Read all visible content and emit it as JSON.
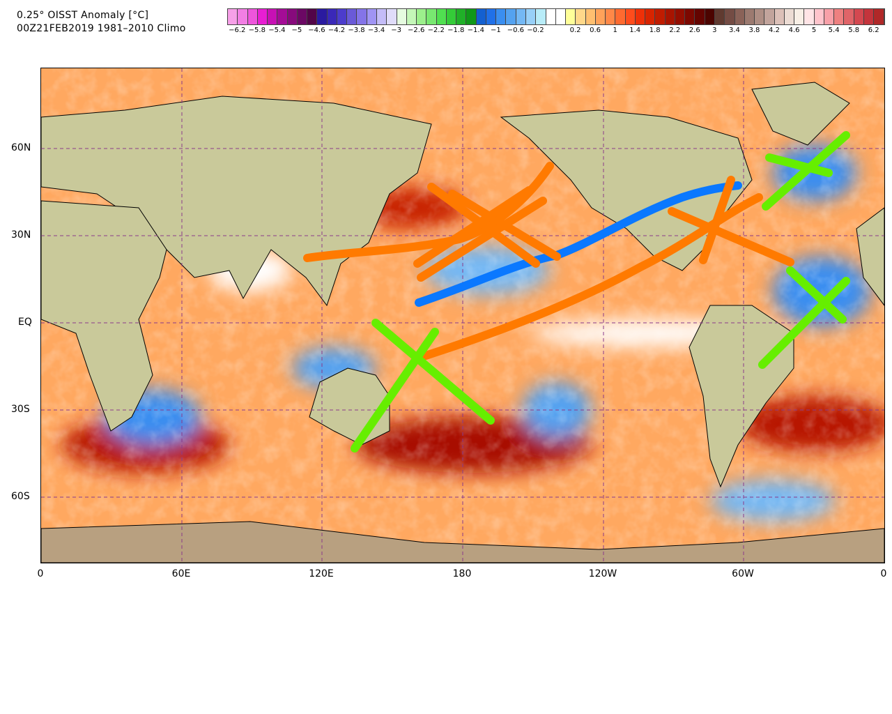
{
  "title_line1": "0.25° OISST Anomaly [°C]",
  "title_line2": "00Z21FEB2019 1981–2010 Climo",
  "colorbar": {
    "labels": [
      "−6.2",
      "−5.8",
      "−5.4",
      "−5",
      "−4.6",
      "−4.2",
      "−3.8",
      "−3.4",
      "−3",
      "−2.6",
      "−2.2",
      "−1.8",
      "−1.4",
      "−1",
      "−0.6",
      "−0.2",
      "0.2",
      "0.6",
      "1",
      "1.4",
      "1.8",
      "2.2",
      "2.6",
      "3",
      "3.4",
      "3.8",
      "4.2",
      "4.6",
      "5",
      "5.4",
      "5.8",
      "6.2"
    ],
    "colors": [
      "#f7a0e8",
      "#f27ee4",
      "#ee55dc",
      "#e81ed3",
      "#c710b4",
      "#a40c96",
      "#870a7c",
      "#6b0864",
      "#520548",
      "#2a1aa0",
      "#3a28b8",
      "#4c3ccc",
      "#6a5ad8",
      "#8474e8",
      "#a094f4",
      "#c4bcf8",
      "#e0dcfa",
      "#e6fce0",
      "#c4f7b8",
      "#9cf08c",
      "#78e870",
      "#50e050",
      "#34cc38",
      "#20b028",
      "#109818",
      "#1460d0",
      "#2070e8",
      "#3a8ef0",
      "#54a2f0",
      "#74b8f4",
      "#98d0f8",
      "#b8ecf8",
      "#ffffff",
      "#ffffff",
      "#ffff99",
      "#ffd88a",
      "#ffbf70",
      "#ffa25a",
      "#ff8848",
      "#ff6a30",
      "#ff4c1c",
      "#ee3008",
      "#d82400",
      "#c01c00",
      "#a81400",
      "#940e00",
      "#7c0800",
      "#640400",
      "#4c0400",
      "#603a30",
      "#744c44",
      "#8a6258",
      "#9c7a70",
      "#ae8e84",
      "#c2a49c",
      "#dcc0b8",
      "#ecdcd4",
      "#f8efe6",
      "#ffe4e6",
      "#ffc4cc",
      "#f8a0a8",
      "#ee8080",
      "#e06468",
      "#d44850",
      "#c4343c",
      "#b02828"
    ]
  },
  "x_axis": {
    "ticks": [
      "0",
      "60E",
      "120E",
      "180",
      "120W",
      "60W",
      "0"
    ]
  },
  "y_axis": {
    "ticks": [
      "60N",
      "30N",
      "EQ",
      "30S",
      "60S"
    ]
  },
  "annotations": {
    "colors": {
      "warm_x": "#ff7a00",
      "cool_x": "#66ee00",
      "jet_line": "#0a78ff"
    }
  }
}
